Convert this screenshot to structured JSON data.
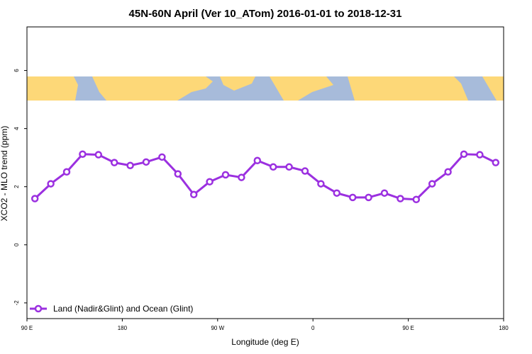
{
  "chart_data": {
    "type": "line",
    "title": "45N-60N April (Ver 10_ATom)   2016-01-01 to 2018-12-31",
    "x_label": "Longitude (deg E)",
    "y_label": "XCO2 - MLO trend (ppm)",
    "xlim": [
      90,
      540
    ],
    "ylim": [
      -2.54,
      7.5
    ],
    "xticks": [
      {
        "value": 90,
        "label": "90 E"
      },
      180,
      {
        "value": 270,
        "label": "90 W"
      },
      {
        "value": 360,
        "label": "0"
      },
      {
        "value": 450,
        "label": "90 E"
      },
      {
        "value": 540,
        "label": "180"
      }
    ],
    "yticks": [
      -2,
      0,
      2,
      4,
      6
    ],
    "legend": "bottom-left",
    "x": [
      97.5,
      112.5,
      127.5,
      142.5,
      157.5,
      172.5,
      187.5,
      202.5,
      217.5,
      232.5,
      247.5,
      262.5,
      277.5,
      292.5,
      307.5,
      322.5,
      337.5,
      352.5,
      367.5,
      382.5,
      397.5,
      412.5,
      427.5,
      442.5,
      457.5,
      472.5,
      487.5,
      502.5,
      517.5,
      532.5
    ],
    "series": [
      {
        "name": "Land (Nadir&Glint) and Ocean (Glint)",
        "color": "#9b30e0",
        "values": [
          1.59,
          2.1,
          2.51,
          3.12,
          3.1,
          2.83,
          2.73,
          2.85,
          3.02,
          2.44,
          1.73,
          2.17,
          2.41,
          2.32,
          2.9,
          2.68,
          2.68,
          2.54,
          2.1,
          1.78,
          1.63,
          1.63,
          1.78,
          1.59,
          1.56,
          2.1,
          2.51,
          3.12,
          3.1,
          2.83
        ]
      }
    ]
  }
}
